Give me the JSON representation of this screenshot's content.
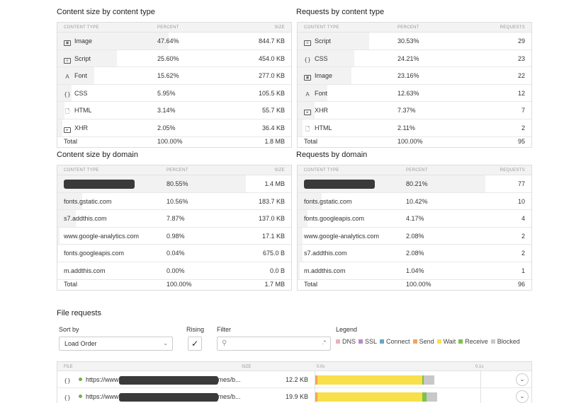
{
  "content_size_by_type": {
    "title": "Content size by content type",
    "headers": [
      "CONTENT TYPE",
      "PERCENT",
      "SIZE"
    ],
    "rows": [
      {
        "label": "Image",
        "icon": "image-icon",
        "percent": "47.64%",
        "value": "844.7 KB",
        "share": 0.4764
      },
      {
        "label": "Script",
        "icon": "script-icon",
        "percent": "25.60%",
        "value": "454.0 KB",
        "share": 0.256
      },
      {
        "label": "Font",
        "icon": "font-icon",
        "percent": "15.62%",
        "value": "277.0 KB",
        "share": 0.1562
      },
      {
        "label": "CSS",
        "icon": "css-icon",
        "percent": "5.95%",
        "value": "105.5 KB",
        "share": 0.0595
      },
      {
        "label": "HTML",
        "icon": "html-icon",
        "percent": "3.14%",
        "value": "55.7 KB",
        "share": 0.0314
      },
      {
        "label": "XHR",
        "icon": "xhr-icon",
        "percent": "2.05%",
        "value": "36.4 KB",
        "share": 0.0205
      }
    ],
    "total": {
      "label": "Total",
      "percent": "100.00%",
      "value": "1.8 MB"
    }
  },
  "requests_by_type": {
    "title": "Requests by content type",
    "headers": [
      "CONTENT TYPE",
      "PERCENT",
      "REQUESTS"
    ],
    "rows": [
      {
        "label": "Script",
        "icon": "script-icon",
        "percent": "30.53%",
        "value": "29",
        "share": 0.3053
      },
      {
        "label": "CSS",
        "icon": "css-icon",
        "percent": "24.21%",
        "value": "23",
        "share": 0.2421
      },
      {
        "label": "Image",
        "icon": "image-icon",
        "percent": "23.16%",
        "value": "22",
        "share": 0.2316
      },
      {
        "label": "Font",
        "icon": "font-icon",
        "percent": "12.63%",
        "value": "12",
        "share": 0.1263
      },
      {
        "label": "XHR",
        "icon": "xhr-icon",
        "percent": "7.37%",
        "value": "7",
        "share": 0.0737
      },
      {
        "label": "HTML",
        "icon": "html-icon",
        "percent": "2.11%",
        "value": "2",
        "share": 0.0211
      }
    ],
    "total": {
      "label": "Total",
      "percent": "100.00%",
      "value": "95"
    }
  },
  "content_size_by_domain": {
    "title": "Content size by domain",
    "headers": [
      "CONTENT TYPE",
      "PERCENT",
      "SIZE"
    ],
    "rows": [
      {
        "label": "",
        "redacted": true,
        "percent": "80.55%",
        "value": "1.4 MB",
        "share": 0.8055
      },
      {
        "label": "fonts.gstatic.com",
        "percent": "10.56%",
        "value": "183.7 KB",
        "share": 0.1056
      },
      {
        "label": "s7.addthis.com",
        "percent": "7.87%",
        "value": "137.0 KB",
        "share": 0.0787
      },
      {
        "label": "www.google-analytics.com",
        "percent": "0.98%",
        "value": "17.1 KB",
        "share": 0.0098
      },
      {
        "label": "fonts.googleapis.com",
        "percent": "0.04%",
        "value": "675.0 B",
        "share": 0.0004
      },
      {
        "label": "m.addthis.com",
        "percent": "0.00%",
        "value": "0.0 B",
        "share": 0.0
      }
    ],
    "total": {
      "label": "Total",
      "percent": "100.00%",
      "value": "1.7 MB"
    }
  },
  "requests_by_domain": {
    "title": "Requests by domain",
    "headers": [
      "CONTENT TYPE",
      "PERCENT",
      "REQUESTS"
    ],
    "rows": [
      {
        "label": "",
        "redacted": true,
        "percent": "80.21%",
        "value": "77",
        "share": 0.8021
      },
      {
        "label": "fonts.gstatic.com",
        "percent": "10.42%",
        "value": "10",
        "share": 0.1042
      },
      {
        "label": "fonts.googleapis.com",
        "percent": "4.17%",
        "value": "4",
        "share": 0.0417
      },
      {
        "label": "www.google-analytics.com",
        "percent": "2.08%",
        "value": "2",
        "share": 0.0208
      },
      {
        "label": "s7.addthis.com",
        "percent": "2.08%",
        "value": "2",
        "share": 0.0208
      },
      {
        "label": "m.addthis.com",
        "percent": "1.04%",
        "value": "1",
        "share": 0.0104
      }
    ],
    "total": {
      "label": "Total",
      "percent": "100.00%",
      "value": "96"
    }
  },
  "file_requests": {
    "title": "File requests",
    "sort_by_label": "Sort by",
    "sort_by_value": "Load Order",
    "rising_label": "Rising",
    "rising_checked": "✓",
    "filter_label": "Filter",
    "filter_regex": ".*",
    "legend_label": "Legend",
    "legend": [
      {
        "name": "DNS",
        "color": "#e8b4b8"
      },
      {
        "name": "SSL",
        "color": "#b58bc9"
      },
      {
        "name": "Connect",
        "color": "#6aa5c4"
      },
      {
        "name": "Send",
        "color": "#f5a35c"
      },
      {
        "name": "Wait",
        "color": "#f7e04a"
      },
      {
        "name": "Receive",
        "color": "#7cc24a"
      },
      {
        "name": "Blocked",
        "color": "#c8c8c8"
      }
    ],
    "headers": {
      "file": "FILE",
      "size": "SIZE",
      "t0": "0.0s",
      "t1": "0.1s"
    },
    "rows": [
      {
        "icon": "css-icon",
        "url_start": "https://www",
        "url_end": "mes/b...",
        "size": "12.2 KB"
      },
      {
        "icon": "css-icon",
        "url_start": "https://www",
        "url_end": "mes/b...",
        "size": "19.9 KB"
      }
    ]
  }
}
